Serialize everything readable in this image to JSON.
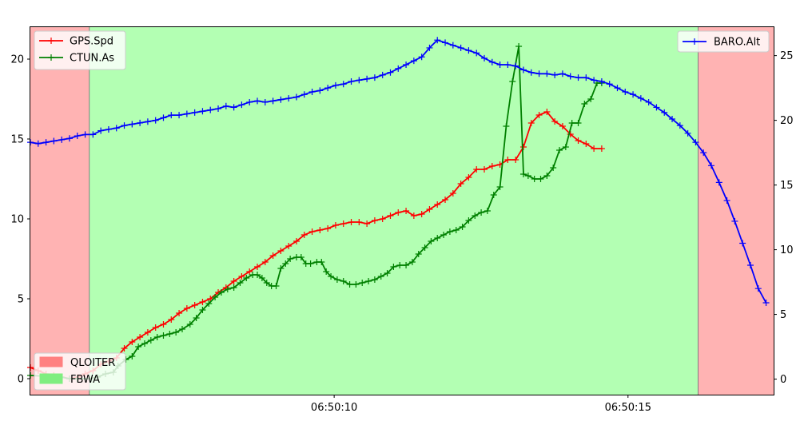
{
  "chart_data": {
    "type": "line",
    "x_axis": {
      "type": "time",
      "range_seconds": [
        0.0,
        24.6
      ],
      "tick_labels": [
        "06:50:10",
        "06:50:15"
      ],
      "tick_positions_seconds": [
        10.0,
        20.0
      ]
    },
    "y_axis_left": {
      "range": [
        -1,
        22
      ],
      "ticks": [
        0,
        5,
        10,
        15,
        20
      ]
    },
    "y_axis_right": {
      "range": [
        -1.2,
        27.2
      ],
      "ticks": [
        0,
        5,
        10,
        15,
        20,
        25
      ]
    },
    "grid": false,
    "mode_bands": [
      {
        "name": "QLOITER",
        "start": 0.0,
        "end": 1.95,
        "color": "#ffb3b3"
      },
      {
        "name": "FBWA",
        "start": 1.95,
        "end": 22.1,
        "color": "#b3ffb3"
      },
      {
        "name": "QLOITER",
        "start": 22.1,
        "end": 24.6,
        "color": "#ffb3b3"
      }
    ],
    "mode_legend": {
      "placement": "bottom-left",
      "entries": [
        {
          "label": "QLOITER",
          "color": "#ff8080"
        },
        {
          "label": "FBWA",
          "color": "#80ee80"
        }
      ]
    },
    "series": [
      {
        "name": "GPS.Spd",
        "axis": "left",
        "color": "#ff0000",
        "marker": "+",
        "points": [
          [
            0.0,
            0.7
          ],
          [
            0.5,
            0.5
          ],
          [
            1.0,
            0.3
          ],
          [
            1.5,
            0.2
          ],
          [
            2.0,
            0.1
          ],
          [
            2.5,
            0.0
          ],
          [
            3.0,
            0.1
          ],
          [
            3.5,
            0.3
          ],
          [
            4.0,
            0.5
          ],
          [
            4.5,
            0.9
          ],
          [
            5.0,
            1.1
          ],
          [
            5.5,
            1.3
          ],
          [
            6.0,
            1.9
          ],
          [
            6.5,
            2.3
          ],
          [
            7.0,
            2.6
          ],
          [
            7.5,
            2.9
          ],
          [
            8.0,
            3.2
          ],
          [
            8.5,
            3.4
          ],
          [
            9.0,
            3.7
          ],
          [
            9.5,
            4.1
          ],
          [
            10.0,
            4.4
          ],
          [
            10.5,
            4.6
          ],
          [
            11.0,
            4.8
          ],
          [
            11.5,
            5.0
          ],
          [
            12.0,
            5.4
          ],
          [
            12.5,
            5.7
          ],
          [
            13.0,
            6.1
          ],
          [
            13.5,
            6.4
          ],
          [
            14.0,
            6.7
          ],
          [
            14.5,
            7.0
          ],
          [
            15.0,
            7.3
          ],
          [
            15.5,
            7.7
          ],
          [
            16.0,
            8.0
          ],
          [
            16.5,
            8.3
          ],
          [
            17.0,
            8.6
          ],
          [
            17.5,
            9.0
          ],
          [
            18.0,
            9.2
          ],
          [
            18.5,
            9.3
          ],
          [
            19.0,
            9.4
          ],
          [
            19.5,
            9.6
          ],
          [
            20.0,
            9.7
          ],
          [
            20.5,
            9.8
          ],
          [
            21.0,
            9.8
          ],
          [
            21.5,
            9.7
          ],
          [
            22.0,
            9.9
          ],
          [
            22.5,
            10.0
          ],
          [
            23.0,
            10.2
          ],
          [
            23.5,
            10.4
          ],
          [
            24.0,
            10.5
          ],
          [
            24.5,
            10.2
          ],
          [
            25.0,
            10.3
          ],
          [
            25.5,
            10.6
          ],
          [
            26.0,
            10.9
          ],
          [
            26.5,
            11.2
          ],
          [
            27.0,
            11.6
          ],
          [
            27.5,
            12.2
          ],
          [
            28.0,
            12.6
          ],
          [
            28.5,
            13.1
          ],
          [
            29.0,
            13.1
          ],
          [
            29.5,
            13.3
          ],
          [
            30.0,
            13.4
          ],
          [
            30.5,
            13.7
          ],
          [
            31.0,
            13.7
          ],
          [
            31.5,
            14.5
          ],
          [
            32.0,
            16.0
          ],
          [
            32.5,
            16.5
          ],
          [
            33.0,
            16.7
          ],
          [
            33.5,
            16.1
          ],
          [
            34.0,
            15.8
          ],
          [
            34.5,
            15.3
          ],
          [
            35.0,
            14.9
          ],
          [
            35.5,
            14.7
          ],
          [
            36.0,
            14.4
          ],
          [
            36.5,
            14.4
          ]
        ]
      },
      {
        "name": "CTUN.As",
        "axis": "left",
        "color": "#008000",
        "marker": "+",
        "points": [
          [
            0.0,
            0.2
          ],
          [
            1.95,
            0.1
          ],
          [
            2.5,
            0.0
          ],
          [
            3.0,
            0.0
          ],
          [
            3.8,
            0.0
          ],
          [
            4.3,
            0.1
          ],
          [
            4.8,
            0.3
          ],
          [
            5.3,
            0.4
          ],
          [
            5.6,
            0.8
          ],
          [
            6.1,
            1.2
          ],
          [
            6.5,
            1.4
          ],
          [
            6.9,
            2.0
          ],
          [
            7.3,
            2.2
          ],
          [
            7.7,
            2.4
          ],
          [
            8.1,
            2.6
          ],
          [
            8.5,
            2.7
          ],
          [
            8.9,
            2.8
          ],
          [
            9.3,
            2.9
          ],
          [
            9.7,
            3.1
          ],
          [
            10.2,
            3.4
          ],
          [
            10.6,
            3.8
          ],
          [
            11.0,
            4.3
          ],
          [
            11.4,
            4.7
          ],
          [
            11.8,
            5.1
          ],
          [
            12.2,
            5.4
          ],
          [
            12.6,
            5.6
          ],
          [
            13.0,
            5.7
          ],
          [
            13.4,
            6.0
          ],
          [
            13.8,
            6.3
          ],
          [
            14.2,
            6.5
          ],
          [
            14.5,
            6.5
          ],
          [
            14.8,
            6.3
          ],
          [
            15.1,
            6.0
          ],
          [
            15.4,
            5.8
          ],
          [
            15.7,
            5.8
          ],
          [
            16.0,
            6.9
          ],
          [
            16.3,
            7.2
          ],
          [
            16.6,
            7.5
          ],
          [
            17.0,
            7.6
          ],
          [
            17.3,
            7.6
          ],
          [
            17.6,
            7.2
          ],
          [
            17.9,
            7.2
          ],
          [
            18.3,
            7.3
          ],
          [
            18.6,
            7.3
          ],
          [
            18.9,
            6.7
          ],
          [
            19.2,
            6.4
          ],
          [
            19.6,
            6.2
          ],
          [
            20.0,
            6.1
          ],
          [
            20.4,
            5.9
          ],
          [
            20.8,
            5.9
          ],
          [
            21.2,
            6.0
          ],
          [
            21.6,
            6.1
          ],
          [
            22.0,
            6.2
          ],
          [
            22.4,
            6.4
          ],
          [
            22.8,
            6.6
          ],
          [
            23.2,
            7.0
          ],
          [
            23.6,
            7.1
          ],
          [
            24.0,
            7.1
          ],
          [
            24.4,
            7.3
          ],
          [
            24.8,
            7.8
          ],
          [
            25.2,
            8.2
          ],
          [
            25.6,
            8.6
          ],
          [
            26.0,
            8.8
          ],
          [
            26.4,
            9.0
          ],
          [
            26.8,
            9.2
          ],
          [
            27.2,
            9.3
          ],
          [
            27.6,
            9.5
          ],
          [
            28.0,
            9.9
          ],
          [
            28.4,
            10.2
          ],
          [
            28.8,
            10.4
          ],
          [
            29.2,
            10.5
          ],
          [
            29.6,
            11.5
          ],
          [
            30.0,
            12.0
          ],
          [
            30.4,
            15.8
          ],
          [
            30.8,
            18.6
          ],
          [
            31.2,
            20.8
          ],
          [
            31.5,
            12.8
          ],
          [
            31.8,
            12.7
          ],
          [
            32.2,
            12.5
          ],
          [
            32.6,
            12.5
          ],
          [
            33.0,
            12.7
          ],
          [
            33.4,
            13.2
          ],
          [
            33.8,
            14.3
          ],
          [
            34.2,
            14.5
          ],
          [
            34.6,
            16.0
          ],
          [
            35.0,
            16.0
          ],
          [
            35.4,
            17.2
          ],
          [
            35.8,
            17.5
          ],
          [
            36.2,
            18.5
          ],
          [
            36.5,
            18.5
          ]
        ]
      },
      {
        "name": "BARO.Alt",
        "axis": "right",
        "color": "#0000ff",
        "marker": "+",
        "points": [
          [
            0.0,
            18.3
          ],
          [
            0.5,
            18.2
          ],
          [
            1.0,
            18.3
          ],
          [
            1.5,
            18.4
          ],
          [
            2.0,
            18.5
          ],
          [
            2.5,
            18.6
          ],
          [
            3.0,
            18.8
          ],
          [
            3.5,
            18.9
          ],
          [
            4.0,
            18.9
          ],
          [
            4.5,
            19.2
          ],
          [
            5.0,
            19.3
          ],
          [
            5.5,
            19.4
          ],
          [
            6.0,
            19.6
          ],
          [
            6.5,
            19.7
          ],
          [
            7.0,
            19.8
          ],
          [
            7.5,
            19.9
          ],
          [
            8.0,
            20.0
          ],
          [
            8.5,
            20.2
          ],
          [
            9.0,
            20.4
          ],
          [
            9.5,
            20.4
          ],
          [
            10.0,
            20.5
          ],
          [
            10.5,
            20.6
          ],
          [
            11.0,
            20.7
          ],
          [
            11.5,
            20.8
          ],
          [
            12.0,
            20.9
          ],
          [
            12.5,
            21.1
          ],
          [
            13.0,
            21.0
          ],
          [
            13.5,
            21.2
          ],
          [
            14.0,
            21.4
          ],
          [
            14.5,
            21.5
          ],
          [
            15.0,
            21.4
          ],
          [
            15.5,
            21.5
          ],
          [
            16.0,
            21.6
          ],
          [
            16.5,
            21.7
          ],
          [
            17.0,
            21.8
          ],
          [
            17.5,
            22.0
          ],
          [
            18.0,
            22.2
          ],
          [
            18.5,
            22.3
          ],
          [
            19.0,
            22.5
          ],
          [
            19.5,
            22.7
          ],
          [
            20.0,
            22.8
          ],
          [
            20.5,
            23.0
          ],
          [
            21.0,
            23.1
          ],
          [
            21.5,
            23.2
          ],
          [
            22.0,
            23.3
          ],
          [
            22.5,
            23.5
          ],
          [
            23.0,
            23.7
          ],
          [
            23.5,
            24.0
          ],
          [
            24.0,
            24.3
          ],
          [
            24.5,
            24.6
          ],
          [
            25.0,
            24.9
          ],
          [
            25.5,
            25.6
          ],
          [
            26.0,
            26.2
          ],
          [
            26.5,
            26.0
          ],
          [
            27.0,
            25.8
          ],
          [
            27.5,
            25.6
          ],
          [
            28.0,
            25.4
          ],
          [
            28.5,
            25.2
          ],
          [
            29.0,
            24.8
          ],
          [
            29.5,
            24.5
          ],
          [
            30.0,
            24.3
          ],
          [
            30.5,
            24.3
          ],
          [
            31.0,
            24.2
          ],
          [
            31.5,
            23.9
          ],
          [
            32.0,
            23.7
          ],
          [
            32.5,
            23.6
          ],
          [
            33.0,
            23.6
          ],
          [
            33.5,
            23.5
          ],
          [
            34.0,
            23.6
          ],
          [
            34.5,
            23.4
          ],
          [
            35.0,
            23.3
          ],
          [
            35.5,
            23.3
          ],
          [
            36.0,
            23.1
          ],
          [
            36.5,
            23.0
          ],
          [
            37.0,
            22.8
          ],
          [
            37.5,
            22.5
          ],
          [
            38.0,
            22.2
          ],
          [
            38.5,
            22.0
          ],
          [
            39.0,
            21.7
          ],
          [
            39.5,
            21.4
          ],
          [
            40.0,
            21.0
          ],
          [
            40.5,
            20.6
          ],
          [
            41.0,
            20.1
          ],
          [
            41.5,
            19.6
          ],
          [
            42.0,
            19.0
          ],
          [
            42.5,
            18.3
          ],
          [
            43.0,
            17.5
          ],
          [
            43.5,
            16.5
          ],
          [
            44.0,
            15.2
          ],
          [
            44.5,
            13.8
          ],
          [
            45.0,
            12.2
          ],
          [
            45.5,
            10.5
          ],
          [
            46.0,
            8.8
          ],
          [
            46.5,
            7.0
          ],
          [
            47.0,
            5.9
          ]
        ]
      }
    ],
    "series_legends": [
      {
        "placement": "top-left",
        "entries": [
          "GPS.Spd",
          "CTUN.As"
        ]
      },
      {
        "placement": "top-right",
        "entries": [
          "BARO.Alt"
        ]
      }
    ]
  }
}
